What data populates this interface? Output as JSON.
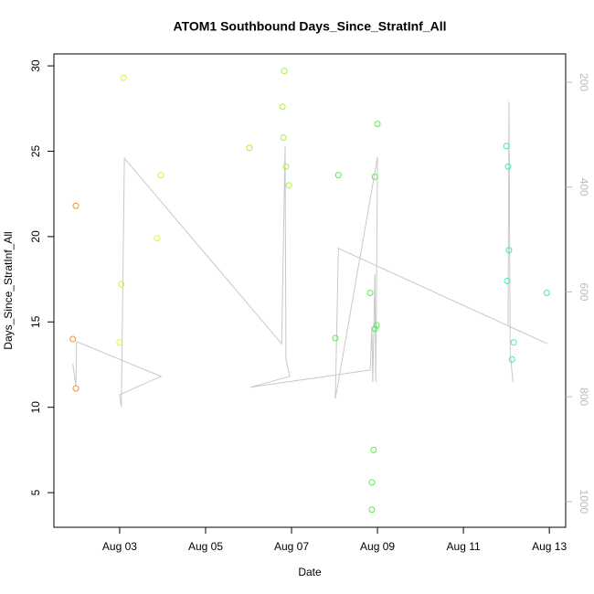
{
  "chart_data": {
    "type": "scatter",
    "title": "ATOM1 Southbound Days_Since_StratInf_All",
    "x_label": "Date",
    "y_label": "Days_Since_StratInf_All",
    "x": [
      1.91,
      1.98,
      1.98,
      3.09,
      3.04,
      3.0,
      3.87,
      3.96,
      6.02,
      6.83,
      6.79,
      6.81,
      6.87,
      6.94,
      8.02,
      8.09,
      8.83,
      9.0,
      8.94,
      8.94,
      8.98,
      8.91,
      8.87,
      8.87,
      12.0,
      12.04,
      12.06,
      12.02,
      12.17,
      12.13,
      12.94
    ],
    "values": [
      14.0,
      21.8,
      11.1,
      29.3,
      17.2,
      13.8,
      19.9,
      23.6,
      25.2,
      29.7,
      27.6,
      25.8,
      24.1,
      23.0,
      14.05,
      23.6,
      16.7,
      26.6,
      23.5,
      14.6,
      14.8,
      7.5,
      5.6,
      4.0,
      25.3,
      24.1,
      19.2,
      17.4,
      13.8,
      12.8,
      16.7
    ],
    "colors": [
      "#e8952a",
      "#e8952a",
      "#e8952a",
      "#e4ec3a",
      "#e4ec3a",
      "#e4ec3a",
      "#e4ec3a",
      "#e4ec3a",
      "#a8f03a",
      "#a8f03a",
      "#a8f03a",
      "#a8f03a",
      "#a8f03a",
      "#a8f03a",
      "#52f04a",
      "#52f04a",
      "#52f04a",
      "#52f04a",
      "#52f04a",
      "#52f04a",
      "#52f04a",
      "#52f04a",
      "#52f04a",
      "#52f04a",
      "#3cf0a2",
      "#3cf0a2",
      "#3cf0a2",
      "#3cf0a2",
      "#3cf0a2",
      "#3cf0a2",
      "#3cf0a2"
    ],
    "xlim": [
      1.47,
      13.38
    ],
    "xticks": [
      {
        "value": 3,
        "label": "Aug 03"
      },
      {
        "value": 5,
        "label": "Aug 05"
      },
      {
        "value": 7,
        "label": "Aug 07"
      },
      {
        "value": 9,
        "label": "Aug 09"
      },
      {
        "value": 11,
        "label": "Aug 11"
      },
      {
        "value": 13,
        "label": "Aug 13"
      }
    ],
    "ylim": [
      2.97,
      30.7
    ],
    "yticks": [
      5,
      10,
      15,
      20,
      25,
      30
    ],
    "y2lim": [
      1049,
      146
    ],
    "y2ticks": [
      200,
      400,
      600,
      800,
      1000
    ],
    "line": {
      "axis": "y2",
      "color": "#c8c8c8",
      "x": [
        1.91,
        1.98,
        2.0,
        3.96,
        3.0,
        3.04,
        3.11,
        6.77,
        6.85,
        6.87,
        6.96,
        6.04,
        8.83,
        8.87,
        8.89,
        8.94,
        8.96,
        9.0,
        8.02,
        8.09,
        12.96,
        12.04,
        12.06,
        12.09,
        12.15
      ],
      "values": [
        737,
        779,
        695,
        761,
        796,
        819,
        345,
        699,
        322,
        728,
        761,
        782,
        749,
        667,
        772,
        566,
        772,
        343,
        803,
        517,
        699,
        665,
        237,
        714,
        772
      ]
    }
  }
}
